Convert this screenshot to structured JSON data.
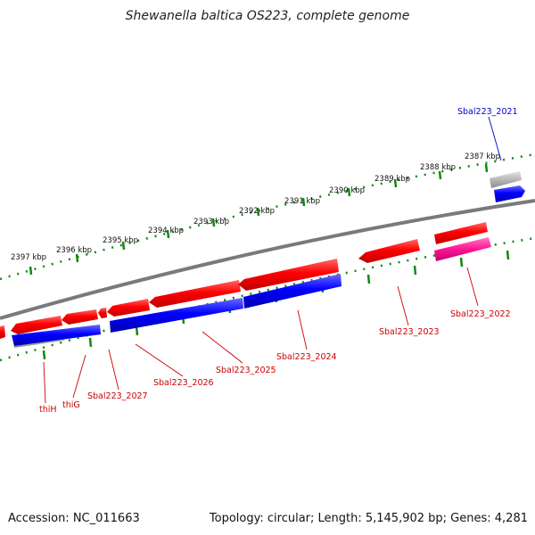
{
  "title": "Shewanella baltica OS223, complete genome",
  "accession": "Accession: NC_011663",
  "summary": "Topology: circular; Length: 5,145,902 bp; Genes: 4,281",
  "colors": {
    "backbone": "#808080",
    "tick": "#118811",
    "forward": "#ff0000",
    "reverse": "#0000ff",
    "pseudo": "#a8a8a8",
    "rna": "#ff1493",
    "label_red": "#cc0000",
    "label_blue": "#0000cc"
  },
  "kbp_labels": [
    "2387 kbp",
    "2388 kbp",
    "2389 kbp",
    "2390 kbp",
    "2391 kbp",
    "2392 kbp",
    "2393 kbp",
    "2394 kbp",
    "2395 kbp",
    "2396 kbp",
    "2397 kbp"
  ],
  "genes": [
    {
      "label": "Sbal223_2021",
      "color": "label_blue"
    },
    {
      "label": "Sbal223_2022",
      "color": "label_red"
    },
    {
      "label": "Sbal223_2023",
      "color": "label_red"
    },
    {
      "label": "Sbal223_2024",
      "color": "label_red"
    },
    {
      "label": "Sbal223_2025",
      "color": "label_red"
    },
    {
      "label": "Sbal223_2026",
      "color": "label_red"
    },
    {
      "label": "Sbal223_2027",
      "color": "label_red"
    },
    {
      "label": "thiG",
      "color": "label_red"
    },
    {
      "label": "thiH",
      "color": "label_red"
    }
  ]
}
